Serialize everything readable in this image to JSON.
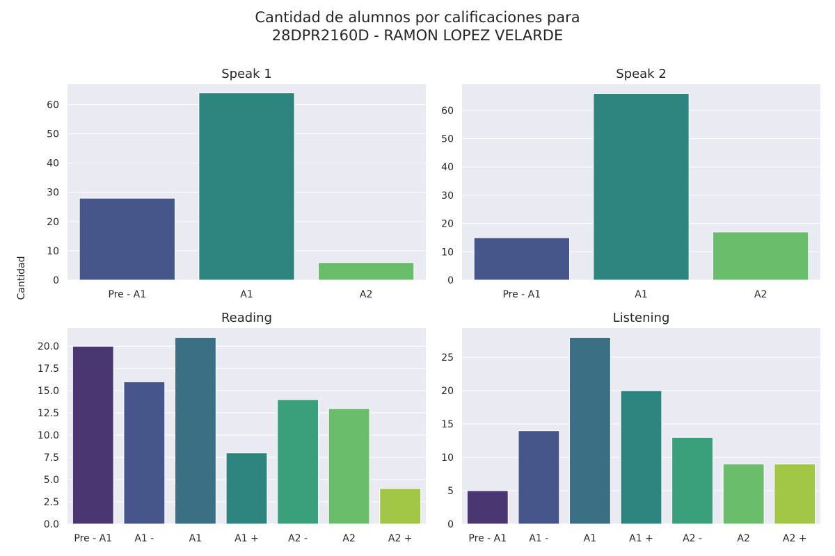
{
  "suptitle": "Cantidad de alumnos por calificaciones para\n 28DPR2160D - RAMON LOPEZ VELARDE",
  "shared_ylabel": "Cantidad",
  "colors": {
    "background": "#eaeaf2",
    "grid": "#ffffff",
    "text": "#262626"
  },
  "chart_data": [
    {
      "type": "bar",
      "title": "Speak 1",
      "categories": [
        "Pre - A1",
        "A1",
        "A2"
      ],
      "values": [
        28,
        64,
        6
      ],
      "colors": [
        "#46568a",
        "#2e8580",
        "#6abd6b"
      ],
      "ylim": [
        0,
        67
      ],
      "yticks": [
        0,
        10,
        20,
        30,
        40,
        50,
        60
      ],
      "ytick_labels": [
        "0",
        "10",
        "20",
        "30",
        "40",
        "50",
        "60"
      ],
      "grid": true
    },
    {
      "type": "bar",
      "title": "Speak 2",
      "categories": [
        "Pre - A1",
        "A1",
        "A2"
      ],
      "values": [
        15,
        66,
        17
      ],
      "colors": [
        "#46568a",
        "#2e8580",
        "#6abd6b"
      ],
      "ylim": [
        0,
        69.3
      ],
      "yticks": [
        0,
        10,
        20,
        30,
        40,
        50,
        60
      ],
      "ytick_labels": [
        "0",
        "10",
        "20",
        "30",
        "40",
        "50",
        "60"
      ],
      "grid": true
    },
    {
      "type": "bar",
      "title": "Reading",
      "categories": [
        "Pre - A1",
        "A1 -",
        "A1",
        "A1 +",
        "A2 -",
        "A2",
        "A2 +"
      ],
      "values": [
        20,
        16,
        21,
        8,
        14,
        13,
        4
      ],
      "colors": [
        "#4a3772",
        "#46568a",
        "#3a6f84",
        "#2e8580",
        "#3a9f7b",
        "#6abd6b",
        "#a2c645"
      ],
      "ylim": [
        0,
        22.05
      ],
      "yticks": [
        0,
        2.5,
        5,
        7.5,
        10,
        12.5,
        15,
        17.5,
        20
      ],
      "ytick_labels": [
        "0.0",
        "2.5",
        "5.0",
        "7.5",
        "10.0",
        "12.5",
        "15.0",
        "17.5",
        "20.0"
      ],
      "grid": true
    },
    {
      "type": "bar",
      "title": "Listening",
      "categories": [
        "Pre - A1",
        "A1 -",
        "A1",
        "A1 +",
        "A2 -",
        "A2",
        "A2 +"
      ],
      "values": [
        5,
        14,
        28,
        20,
        13,
        9,
        9
      ],
      "colors": [
        "#4a3772",
        "#46568a",
        "#3a6f84",
        "#2e8580",
        "#3a9f7b",
        "#6abd6b",
        "#a2c645"
      ],
      "ylim": [
        0,
        29.4
      ],
      "yticks": [
        0,
        5,
        10,
        15,
        20,
        25
      ],
      "ytick_labels": [
        "0",
        "5",
        "10",
        "15",
        "20",
        "25"
      ],
      "grid": true
    }
  ]
}
